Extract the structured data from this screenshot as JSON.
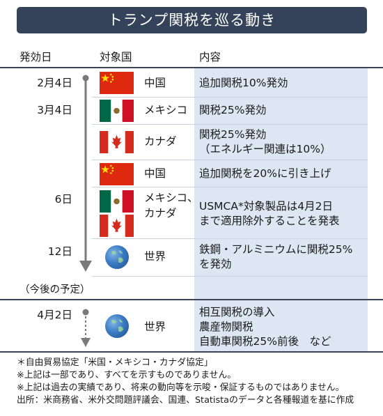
{
  "title": "トランプ関税を巡る動き",
  "headers": {
    "date": "発効日",
    "country": "対象国",
    "content": "内容"
  },
  "rows": [
    {
      "date": "2月4日",
      "country": "中国",
      "flags": [
        "china"
      ],
      "content": [
        "追加関税10%発効"
      ]
    },
    {
      "date": "3月4日",
      "country": "メキシコ",
      "flags": [
        "mexico"
      ],
      "content": [
        "関税25%発効"
      ]
    },
    {
      "date": "",
      "country": "カナダ",
      "flags": [
        "canada"
      ],
      "content": [
        "関税25%発効",
        "（エネルギー関連は10%）"
      ]
    },
    {
      "date": "",
      "country": "中国",
      "flags": [
        "china"
      ],
      "content": [
        "追加関税を20%に引き上げ"
      ]
    },
    {
      "date": "6日",
      "country": [
        "メキシコ、",
        "カナダ"
      ],
      "flags": [
        "mexico",
        "canada"
      ],
      "content": [
        "USMCA*対象製品は4月2日",
        "まで適用除外することを発表"
      ]
    },
    {
      "date": "12日",
      "country": "世界",
      "flags": [
        "globe"
      ],
      "content": [
        "鉄鋼・アルミニウムに関税25%",
        "を発効"
      ]
    }
  ],
  "future_label": "（今後の予定）",
  "future_row": {
    "date": "4月2日",
    "country": "世界",
    "flags": [
      "globe"
    ],
    "content": [
      "相互関税の導入",
      "農産物関税",
      "自動車関税25%前後　など"
    ]
  },
  "footnotes": [
    "＊自由貿易協定「米国・メキシコ・カナダ協定」",
    "※上記は一部であり、すべてを示すものでありません。",
    "※上記は過去の実績であり、将来の動向等を示唆・保証するものではありません。",
    "出所：米商務省、米外交問題評議会、国連、Statistaのデータと各種報道を基に作成"
  ],
  "colors": {
    "title_bg": "#34425a",
    "content_bg": "#dce7f3",
    "timeline": "#7a7a7a"
  }
}
